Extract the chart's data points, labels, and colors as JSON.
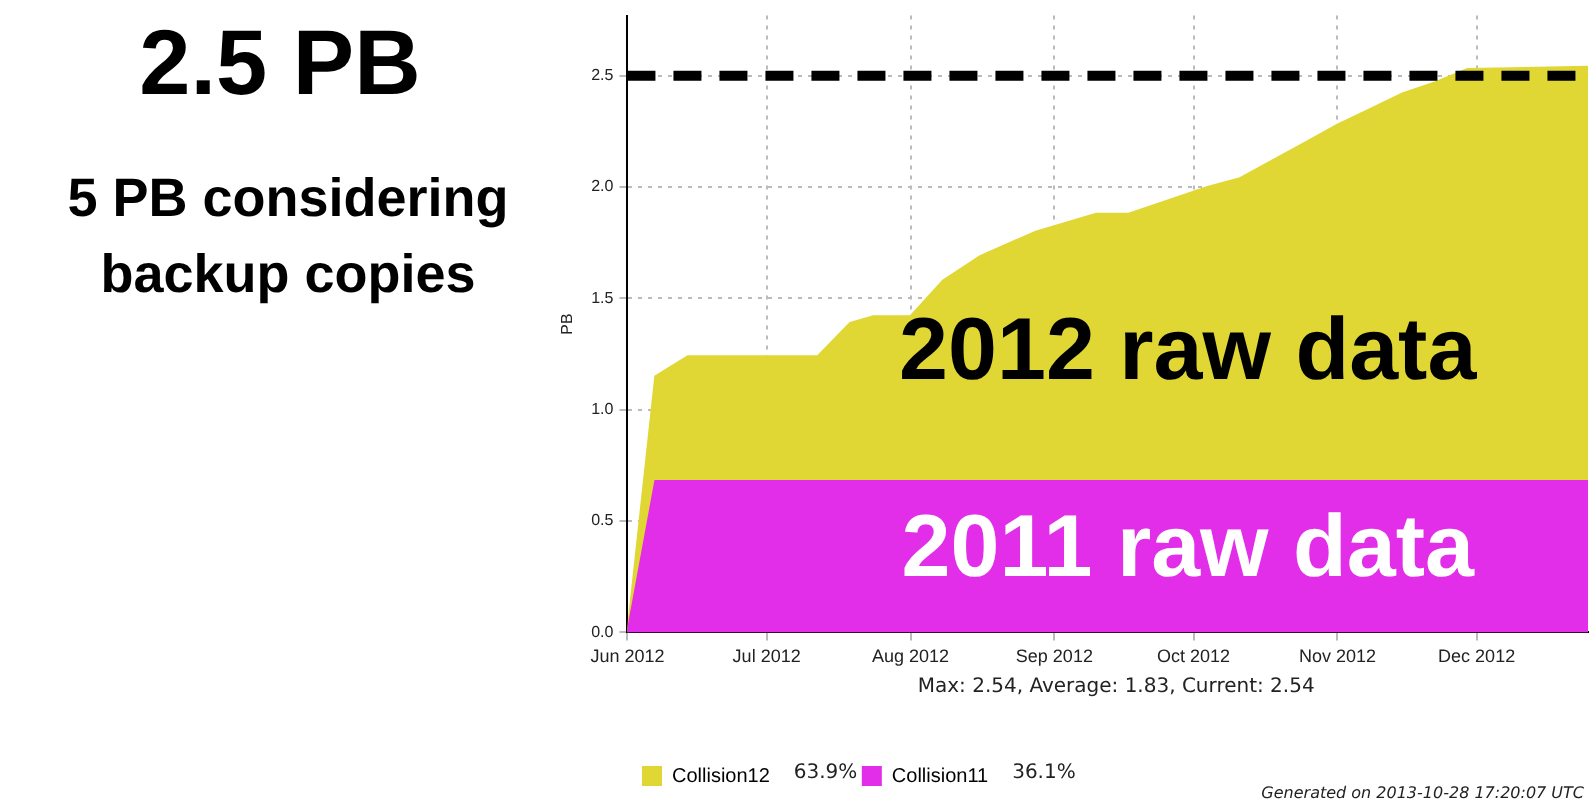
{
  "chart_data": {
    "type": "area",
    "stacked": true,
    "ylabel": "PB",
    "x": [
      "2012-06-01",
      "2012-06-07",
      "2012-06-14",
      "2012-07-12",
      "2012-07-19",
      "2012-07-24",
      "2012-08-01",
      "2012-08-08",
      "2012-08-16",
      "2012-08-28",
      "2012-09-10",
      "2012-09-17",
      "2012-09-24",
      "2012-10-04",
      "2012-10-11",
      "2012-10-18",
      "2012-10-25",
      "2012-11-01",
      "2012-11-08",
      "2012-11-15",
      "2012-11-22",
      "2012-11-29",
      "2012-12-25"
    ],
    "series": [
      {
        "name": "Collision11",
        "color": "#e22ee8",
        "values": [
          0,
          0.68,
          0.68,
          0.68,
          0.68,
          0.68,
          0.68,
          0.68,
          0.68,
          0.68,
          0.68,
          0.68,
          0.68,
          0.68,
          0.68,
          0.68,
          0.68,
          0.68,
          0.68,
          0.68,
          0.68,
          0.68,
          0.68
        ]
      },
      {
        "name": "Collision12",
        "color": "#e0d734",
        "values": [
          0,
          0.47,
          0.56,
          0.56,
          0.71,
          0.74,
          0.74,
          0.9,
          1.01,
          1.12,
          1.2,
          1.2,
          1.25,
          1.32,
          1.36,
          1.44,
          1.52,
          1.6,
          1.67,
          1.74,
          1.79,
          1.85,
          1.86
        ]
      }
    ],
    "xlim": [
      "2012-06-01",
      "2012-12-25"
    ],
    "xticks": [
      {
        "value": "2012-06-01",
        "label": "Jun 2012"
      },
      {
        "value": "2012-07-01",
        "label": "Jul 2012"
      },
      {
        "value": "2012-08-01",
        "label": "Aug 2012"
      },
      {
        "value": "2012-09-01",
        "label": "Sep 2012"
      },
      {
        "value": "2012-10-01",
        "label": "Oct 2012"
      },
      {
        "value": "2012-11-01",
        "label": "Nov 2012"
      },
      {
        "value": "2012-12-01",
        "label": "Dec 2012"
      }
    ],
    "ylim": [
      0,
      2.77
    ],
    "yticks": [
      {
        "value": 0,
        "label": "0.0"
      },
      {
        "value": 0.5,
        "label": "0.5"
      },
      {
        "value": 1,
        "label": "1.0"
      },
      {
        "value": 1.5,
        "label": "1.5"
      },
      {
        "value": 2,
        "label": "2.0"
      },
      {
        "value": 2.5,
        "label": "2.5"
      }
    ],
    "grid": true,
    "legend": "bottom",
    "ref_lines": [
      {
        "axis": "y",
        "value": 2.5,
        "label": "2.5 PB",
        "color": "#000000",
        "line_style": "dashed"
      }
    ],
    "annotations": [
      "5 PB considering backup copies",
      "2012 raw data",
      "2011 raw data",
      "Max: 2.54, Average: 1.83, Current: 2.54",
      "63.9%",
      "36.1%",
      "Generated on 2013-10-28 17:20:07 UTC"
    ]
  }
}
